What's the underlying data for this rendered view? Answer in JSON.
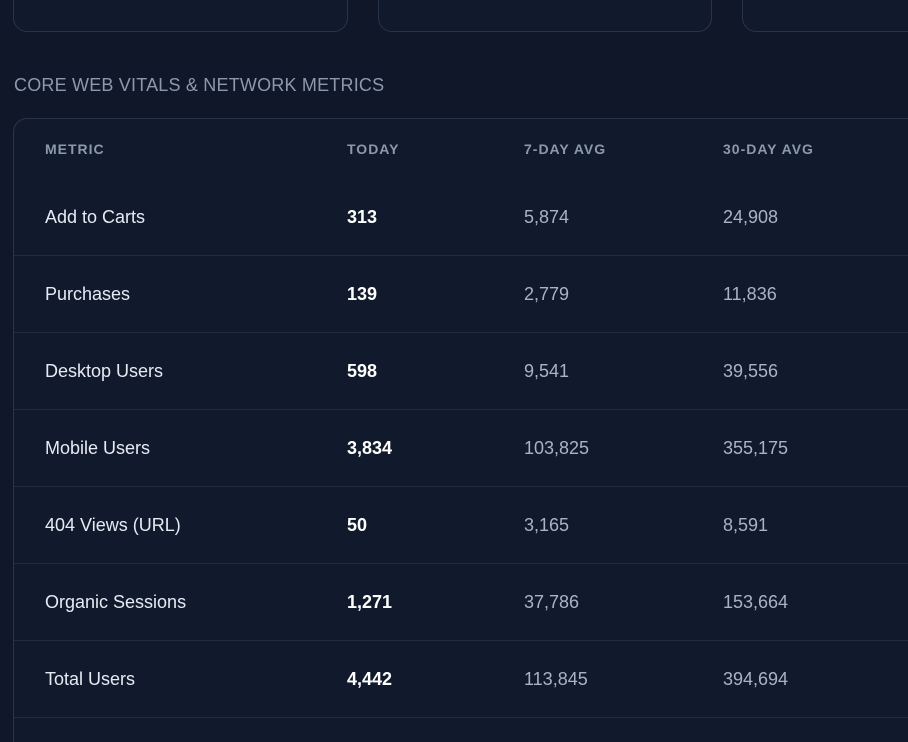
{
  "section": {
    "title": "CORE WEB VITALS & NETWORK METRICS"
  },
  "table": {
    "headers": {
      "metric": "METRIC",
      "today": "TODAY",
      "avg7": "7-DAY AVG",
      "avg30": "30-DAY AVG"
    },
    "rows": [
      {
        "metric": "Add to Carts",
        "today": "313",
        "avg7": "5,874",
        "avg30": "24,908"
      },
      {
        "metric": "Purchases",
        "today": "139",
        "avg7": "2,779",
        "avg30": "11,836"
      },
      {
        "metric": "Desktop Users",
        "today": "598",
        "avg7": "9,541",
        "avg30": "39,556"
      },
      {
        "metric": "Mobile Users",
        "today": "3,834",
        "avg7": "103,825",
        "avg30": "355,175"
      },
      {
        "metric": "404 Views (URL)",
        "today": "50",
        "avg7": "3,165",
        "avg30": "8,591"
      },
      {
        "metric": "Organic Sessions",
        "today": "1,271",
        "avg7": "37,786",
        "avg30": "153,664"
      },
      {
        "metric": "Total Users",
        "today": "4,442",
        "avg7": "113,845",
        "avg30": "394,694"
      }
    ]
  }
}
